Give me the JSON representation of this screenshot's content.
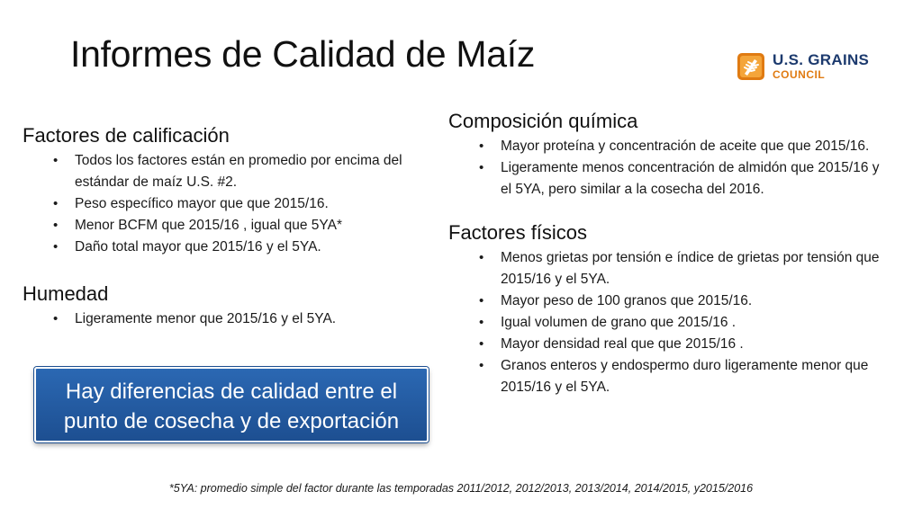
{
  "title": "Informes de Calidad de Maíz",
  "logo": {
    "line1": "U.S. GRAINS",
    "line2": "COUNCIL",
    "icon": "grain-council-logo-icon",
    "colors": {
      "navy": "#1c3a6e",
      "orange": "#e07b12"
    }
  },
  "left": {
    "grading": {
      "heading": "Factores de calificación",
      "items": [
        "Todos los factores están en promedio por encima del estándar de maíz U.S. #2.",
        "Peso específico mayor que que 2015/16.",
        "Menor BCFM que 2015/16 , igual que 5YA*",
        "Daño total mayor que 2015/16 y el 5YA."
      ]
    },
    "moisture": {
      "heading": "Humedad",
      "items": [
        "Ligeramente menor que 2015/16 y el 5YA."
      ]
    }
  },
  "right": {
    "chemical": {
      "heading": "Composición química",
      "items": [
        "Mayor proteína y concentración de aceite que que 2015/16.",
        "Ligeramente menos concentración de almidón que 2015/16 y el 5YA, pero similar a la cosecha del 2016."
      ]
    },
    "physical": {
      "heading": "Factores físicos",
      "items": [
        "Menos grietas por tensión e índice de grietas por tensión que 2015/16 y el 5YA.",
        "Mayor peso de 100 granos que 2015/16.",
        "Igual volumen de grano que 2015/16 .",
        "Mayor densidad real que que 2015/16 .",
        "Granos enteros y endospermo duro ligeramente menor que 2015/16 y el 5YA."
      ]
    }
  },
  "callout": {
    "line1": "Hay diferencias de calidad entre el",
    "line2": "punto de cosecha y de exportación",
    "color": "#2b68b3"
  },
  "footnote": "*5YA: promedio simple del factor durante las temporadas 2011/2012, 2012/2013, 2013/2014, 2014/2015, y2015/2016"
}
